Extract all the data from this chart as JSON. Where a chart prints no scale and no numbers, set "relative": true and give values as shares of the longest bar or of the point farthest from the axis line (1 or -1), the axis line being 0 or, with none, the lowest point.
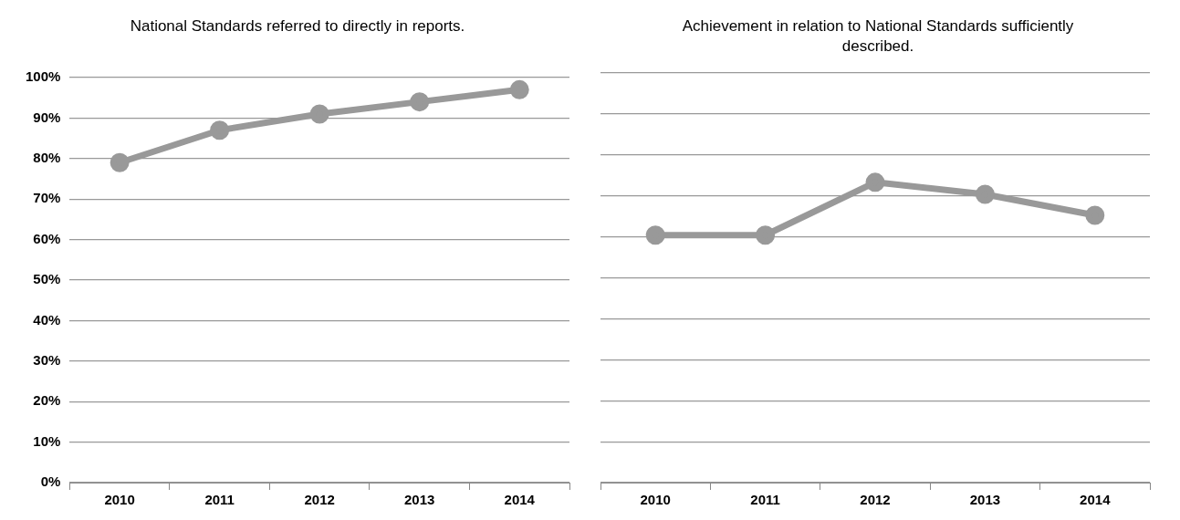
{
  "chart_data": [
    {
      "type": "line",
      "title": "National Standards referred to directly in reports.",
      "categories": [
        "2010",
        "2011",
        "2012",
        "2013",
        "2014"
      ],
      "series": [
        {
          "color": "#999999",
          "values": [
            79,
            87,
            91,
            94,
            97
          ]
        }
      ],
      "ylim": [
        0,
        100
      ],
      "yticks": [
        {
          "value": 0,
          "label": "0%"
        },
        {
          "value": 10,
          "label": "10%"
        },
        {
          "value": 20,
          "label": "20%"
        },
        {
          "value": 30,
          "label": "30%"
        },
        {
          "value": 40,
          "label": "40%"
        },
        {
          "value": 50,
          "label": "50%"
        },
        {
          "value": 60,
          "label": "60%"
        },
        {
          "value": 70,
          "label": "70%"
        },
        {
          "value": 80,
          "label": "80%"
        },
        {
          "value": 90,
          "label": "90%"
        },
        {
          "value": 100,
          "label": "100%"
        }
      ],
      "grid": "y",
      "marker": "circle",
      "line_style": "solid",
      "legend": false
    },
    {
      "type": "line",
      "title": "Achievement in relation to National Standards sufficiently described.",
      "categories": [
        "2010",
        "2011",
        "2012",
        "2013",
        "2014"
      ],
      "series": [
        {
          "color": "#999999",
          "values": [
            0.824,
            0.824,
            1,
            0.96,
            0.89
          ]
        }
      ],
      "relative": true,
      "tick_labels": "x",
      "grid": "y",
      "marker": "circle",
      "line_style": "solid",
      "legend": false
    }
  ]
}
